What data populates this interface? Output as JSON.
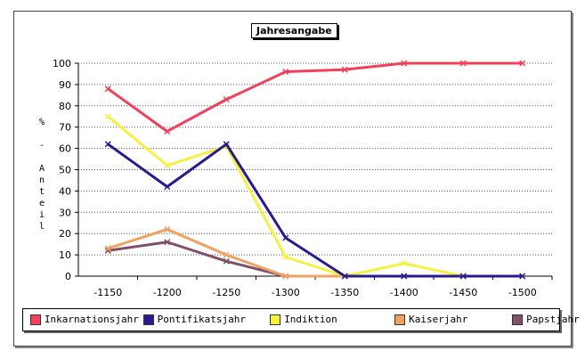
{
  "chart_data": {
    "type": "line",
    "title": "Jahresangabe",
    "xlabel": "",
    "ylabel": "% - Anteil",
    "categories": [
      "-1150",
      "-1200",
      "-1250",
      "-1300",
      "-1350",
      "-1400",
      "-1450",
      "-1500"
    ],
    "ylim": [
      0,
      100
    ],
    "yticks": [
      0,
      10,
      20,
      30,
      40,
      50,
      60,
      70,
      80,
      90,
      100
    ],
    "grid": true,
    "legend": "bottom",
    "series": [
      {
        "name": "Inkarnationsjahr",
        "color": "#f0405a",
        "values": [
          88,
          68,
          83,
          96,
          97,
          100,
          100,
          100
        ]
      },
      {
        "name": "Pontifikatsjahr",
        "color": "#2a1a90",
        "values": [
          62,
          42,
          62,
          18,
          0,
          0,
          0,
          0
        ]
      },
      {
        "name": "Indiktion",
        "color": "#f8f040",
        "values": [
          75,
          52,
          61,
          9,
          0,
          6,
          0,
          0
        ]
      },
      {
        "name": "Kaiserjahr",
        "color": "#f0a060",
        "values": [
          13,
          22,
          10,
          0,
          0,
          0,
          0,
          0
        ]
      },
      {
        "name": "Papstjahr",
        "color": "#805068",
        "values": [
          12,
          16,
          7,
          0,
          0,
          0,
          0,
          0
        ]
      }
    ]
  }
}
